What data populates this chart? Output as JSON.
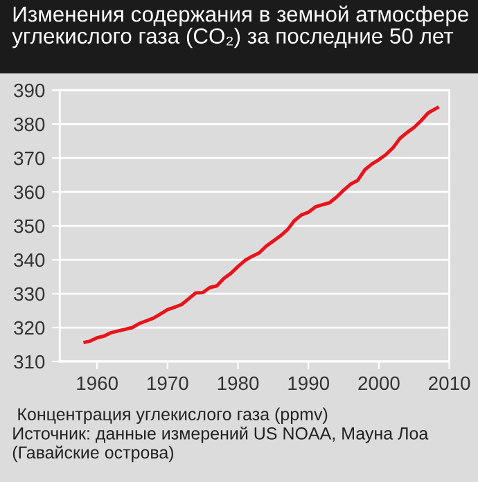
{
  "chart_data": {
    "type": "line",
    "title": "Изменения содержания в земной атмосфере углекислого газа (CO₂) за последние 50 лет",
    "xlabel": "Концентрация углекислого газа (ppmv)",
    "annotations": [
      "Источник: данные измерений US NOAA, Мауна Лоа (Гавайские острова)"
    ],
    "x": [
      1958.3,
      1959,
      1960,
      1961,
      1962,
      1963,
      1964,
      1965,
      1966,
      1967,
      1968,
      1969,
      1970,
      1971,
      1972,
      1973,
      1974,
      1975,
      1976,
      1977,
      1978,
      1979,
      1980,
      1981,
      1982,
      1983,
      1984,
      1985,
      1986,
      1987,
      1988,
      1989,
      1990,
      1991,
      1992,
      1993,
      1994,
      1995,
      1996,
      1997,
      1998,
      1999,
      2000,
      2001,
      2002,
      2003,
      2004,
      2005,
      2006,
      2007,
      2008.3
    ],
    "series": [
      {
        "color": "#e8141c",
        "values": [
          315.7,
          316,
          317,
          317.5,
          318.5,
          319,
          319.5,
          320,
          321.2,
          322,
          322.8,
          324,
          325.3,
          326,
          326.8,
          328.5,
          330.2,
          330.3,
          331.8,
          332.3,
          334.5,
          336,
          338,
          339.8,
          341,
          342,
          344,
          345.5,
          347,
          348.8,
          351.5,
          353.2,
          354,
          355.6,
          356.2,
          356.8,
          358.5,
          360.5,
          362.3,
          363.4,
          366.5,
          368.2,
          369.5,
          371,
          373,
          375.8,
          377.5,
          379,
          381,
          383.3,
          384.8
        ]
      }
    ],
    "xlim": [
      1954.7,
      2010
    ],
    "ylim": [
      310,
      390
    ],
    "xticks": [
      1960,
      1970,
      1980,
      1990,
      2000,
      2010
    ],
    "yticks": [
      310,
      320,
      330,
      340,
      350,
      360,
      370,
      380,
      390
    ],
    "grid": "y",
    "marker": "none",
    "line_style": "solid"
  }
}
